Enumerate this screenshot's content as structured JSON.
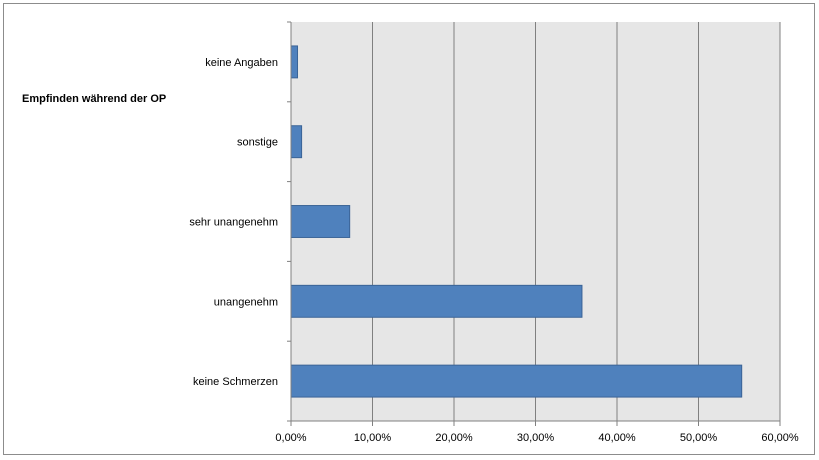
{
  "chart_data": {
    "type": "bar",
    "orientation": "horizontal",
    "ylabel": "Empfinden während der OP",
    "categories": [
      "keine Angaben",
      "sonstige",
      "sehr unangenehm",
      "unangenehm",
      "keine Schmerzen"
    ],
    "values": [
      0.8,
      1.3,
      7.2,
      35.7,
      55.3
    ],
    "xlim": [
      0,
      60
    ],
    "xticks": [
      0,
      10,
      20,
      30,
      40,
      50,
      60
    ],
    "xtick_labels": [
      "0,00%",
      "10,00%",
      "20,00%",
      "30,00%",
      "40,00%",
      "50,00%",
      "60,00%"
    ],
    "grid": true,
    "legend": "none",
    "colors": {
      "bar": "#4f81bd",
      "bar_border": "#3a6396",
      "plot_background": "#e6e6e6",
      "gridline": "#808080"
    }
  }
}
